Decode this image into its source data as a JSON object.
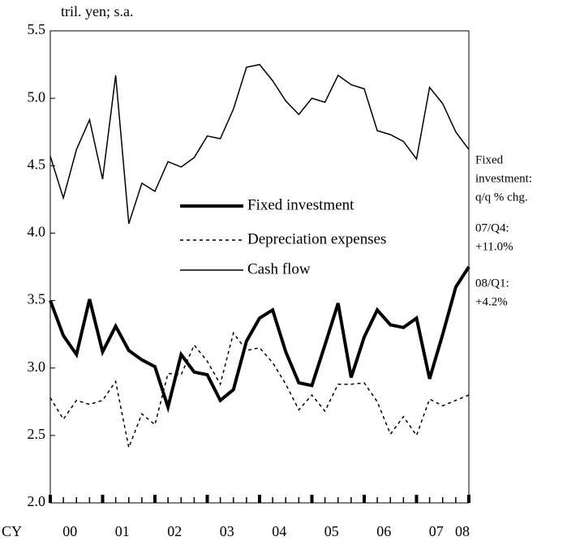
{
  "chart_data": {
    "type": "line",
    "unit_label": "tril. yen; s.a.",
    "x_prefix": "CY",
    "categories": [
      null,
      null,
      null,
      null,
      null,
      null,
      null,
      null,
      null,
      null,
      null,
      null,
      null,
      null,
      null,
      null,
      null,
      null,
      null,
      null,
      null,
      null,
      null,
      null,
      null,
      null,
      null,
      null,
      null,
      null,
      null,
      null,
      null
    ],
    "year_labels": [
      "00",
      "01",
      "02",
      "03",
      "04",
      "05",
      "06",
      "07",
      "08"
    ],
    "ylim": [
      2.0,
      5.5
    ],
    "yticks": [
      {
        "value": 2.0,
        "label": "2.0"
      },
      {
        "value": 2.5,
        "label": "2.5"
      },
      {
        "value": 3.0,
        "label": "3.0"
      },
      {
        "value": 3.5,
        "label": "3.5"
      },
      {
        "value": 4.0,
        "label": "4.0"
      },
      {
        "value": 4.5,
        "label": "4.5"
      },
      {
        "value": 5.0,
        "label": "5.0"
      },
      {
        "value": 5.5,
        "label": "5.5"
      }
    ],
    "series": [
      {
        "name": "Fixed investment",
        "color": "#000000",
        "style": "thick",
        "values": [
          3.5,
          3.24,
          3.1,
          3.51,
          3.12,
          3.31,
          3.13,
          3.06,
          3.01,
          2.71,
          3.1,
          2.97,
          2.95,
          2.76,
          2.84,
          3.2,
          3.37,
          3.43,
          3.12,
          2.89,
          2.87,
          3.17,
          3.48,
          2.93,
          3.23,
          3.43,
          3.32,
          3.3,
          3.37,
          2.92,
          3.25,
          3.6,
          3.75
        ]
      },
      {
        "name": "Depreciation expenses",
        "color": "#000000",
        "style": "dashed",
        "values": [
          2.78,
          2.62,
          2.76,
          2.73,
          2.76,
          2.9,
          2.41,
          2.66,
          2.58,
          2.96,
          2.95,
          3.17,
          3.05,
          2.88,
          3.26,
          3.13,
          3.15,
          3.04,
          2.88,
          2.69,
          2.8,
          2.68,
          2.88,
          2.88,
          2.89,
          2.75,
          2.51,
          2.64,
          2.5,
          2.77,
          2.72,
          2.76,
          2.8
        ]
      },
      {
        "name": "Cash flow",
        "color": "#000000",
        "style": "thin",
        "values": [
          4.57,
          4.26,
          4.62,
          4.84,
          4.4,
          5.17,
          4.07,
          4.37,
          4.31,
          4.53,
          4.49,
          4.56,
          4.72,
          4.7,
          4.92,
          5.23,
          5.25,
          5.13,
          4.98,
          4.88,
          5.0,
          4.97,
          5.17,
          5.1,
          5.07,
          4.76,
          4.73,
          4.68,
          4.55,
          5.08,
          4.96,
          4.75,
          4.62
        ]
      }
    ],
    "annotations": [
      "Fixed",
      "investment:",
      "q/q % chg.",
      "07/Q4:",
      "+11.0%",
      "08/Q1:",
      " +4.2%"
    ]
  }
}
